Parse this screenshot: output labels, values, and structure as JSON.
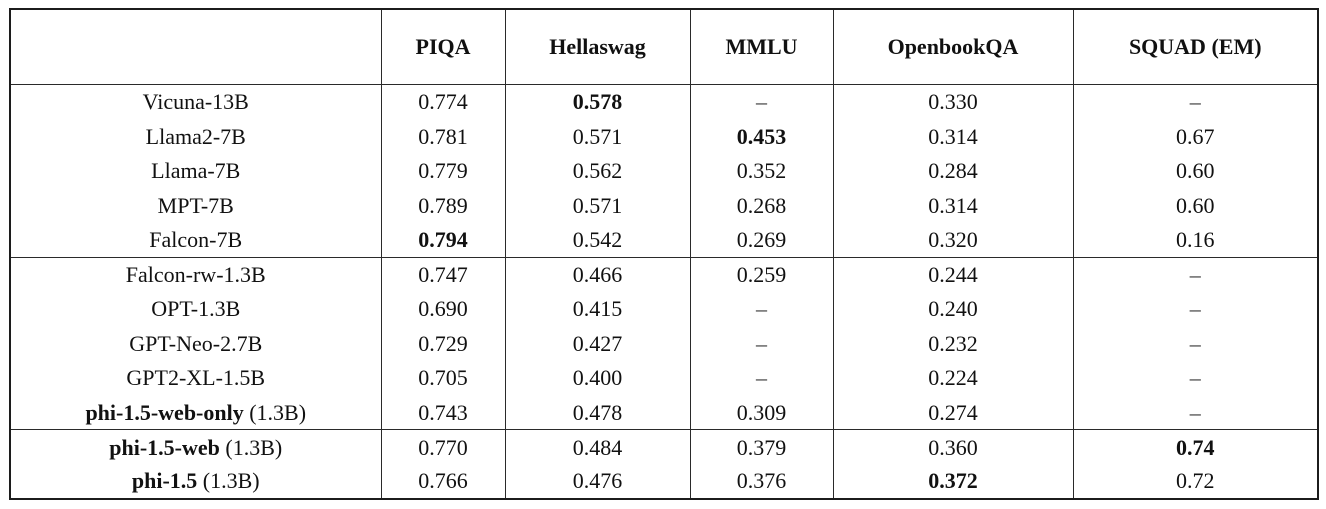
{
  "table": {
    "columns": [
      "",
      "PIQA",
      "Hellaswag",
      "MMLU",
      "OpenbookQA",
      "SQUAD (EM)"
    ],
    "missing_value_symbol": "–",
    "border_color": "#1c1c1c",
    "groups": [
      {
        "rows": [
          {
            "model": {
              "name": "Vicuna-13B",
              "bold": false,
              "suffix": ""
            },
            "values": [
              {
                "v": "0.774",
                "b": false
              },
              {
                "v": "0.578",
                "b": true
              },
              {
                "v": "–",
                "b": false
              },
              {
                "v": "0.330",
                "b": false
              },
              {
                "v": "–",
                "b": false
              }
            ]
          },
          {
            "model": {
              "name": "Llama2-7B",
              "bold": false,
              "suffix": ""
            },
            "values": [
              {
                "v": "0.781",
                "b": false
              },
              {
                "v": "0.571",
                "b": false
              },
              {
                "v": "0.453",
                "b": true
              },
              {
                "v": "0.314",
                "b": false
              },
              {
                "v": "0.67",
                "b": false
              }
            ]
          },
          {
            "model": {
              "name": "Llama-7B",
              "bold": false,
              "suffix": ""
            },
            "values": [
              {
                "v": "0.779",
                "b": false
              },
              {
                "v": "0.562",
                "b": false
              },
              {
                "v": "0.352",
                "b": false
              },
              {
                "v": "0.284",
                "b": false
              },
              {
                "v": "0.60",
                "b": false
              }
            ]
          },
          {
            "model": {
              "name": "MPT-7B",
              "bold": false,
              "suffix": ""
            },
            "values": [
              {
                "v": "0.789",
                "b": false
              },
              {
                "v": "0.571",
                "b": false
              },
              {
                "v": "0.268",
                "b": false
              },
              {
                "v": "0.314",
                "b": false
              },
              {
                "v": "0.60",
                "b": false
              }
            ]
          },
          {
            "model": {
              "name": "Falcon-7B",
              "bold": false,
              "suffix": ""
            },
            "values": [
              {
                "v": "0.794",
                "b": true
              },
              {
                "v": "0.542",
                "b": false
              },
              {
                "v": "0.269",
                "b": false
              },
              {
                "v": "0.320",
                "b": false
              },
              {
                "v": "0.16",
                "b": false
              }
            ]
          }
        ]
      },
      {
        "rows": [
          {
            "model": {
              "name": "Falcon-rw-1.3B",
              "bold": false,
              "suffix": ""
            },
            "values": [
              {
                "v": "0.747",
                "b": false
              },
              {
                "v": "0.466",
                "b": false
              },
              {
                "v": "0.259",
                "b": false
              },
              {
                "v": "0.244",
                "b": false
              },
              {
                "v": "–",
                "b": false
              }
            ]
          },
          {
            "model": {
              "name": "OPT-1.3B",
              "bold": false,
              "suffix": ""
            },
            "values": [
              {
                "v": "0.690",
                "b": false
              },
              {
                "v": "0.415",
                "b": false
              },
              {
                "v": "–",
                "b": false
              },
              {
                "v": "0.240",
                "b": false
              },
              {
                "v": "–",
                "b": false
              }
            ]
          },
          {
            "model": {
              "name": "GPT-Neo-2.7B",
              "bold": false,
              "suffix": ""
            },
            "values": [
              {
                "v": "0.729",
                "b": false
              },
              {
                "v": "0.427",
                "b": false
              },
              {
                "v": "–",
                "b": false
              },
              {
                "v": "0.232",
                "b": false
              },
              {
                "v": "–",
                "b": false
              }
            ]
          },
          {
            "model": {
              "name": "GPT2-XL-1.5B",
              "bold": false,
              "suffix": ""
            },
            "values": [
              {
                "v": "0.705",
                "b": false
              },
              {
                "v": "0.400",
                "b": false
              },
              {
                "v": "–",
                "b": false
              },
              {
                "v": "0.224",
                "b": false
              },
              {
                "v": "–",
                "b": false
              }
            ]
          },
          {
            "model": {
              "name": "phi-1.5-web-only",
              "bold": true,
              "suffix": " (1.3B)"
            },
            "values": [
              {
                "v": "0.743",
                "b": false
              },
              {
                "v": "0.478",
                "b": false
              },
              {
                "v": "0.309",
                "b": false
              },
              {
                "v": "0.274",
                "b": false
              },
              {
                "v": "–",
                "b": false
              }
            ]
          }
        ]
      },
      {
        "rows": [
          {
            "model": {
              "name": "phi-1.5-web",
              "bold": true,
              "suffix": " (1.3B)"
            },
            "values": [
              {
                "v": "0.770",
                "b": false
              },
              {
                "v": "0.484",
                "b": false
              },
              {
                "v": "0.379",
                "b": false
              },
              {
                "v": "0.360",
                "b": false
              },
              {
                "v": "0.74",
                "b": true
              }
            ]
          },
          {
            "model": {
              "name": "phi-1.5",
              "bold": true,
              "suffix": " (1.3B)"
            },
            "values": [
              {
                "v": "0.766",
                "b": false
              },
              {
                "v": "0.476",
                "b": false
              },
              {
                "v": "0.376",
                "b": false
              },
              {
                "v": "0.372",
                "b": true
              },
              {
                "v": "0.72",
                "b": false
              }
            ]
          }
        ]
      }
    ]
  }
}
